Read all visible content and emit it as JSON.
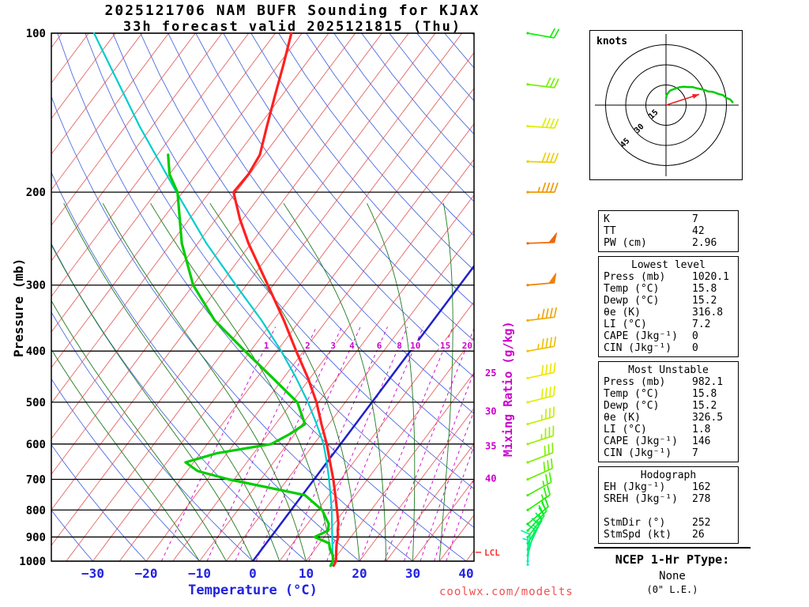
{
  "title": {
    "line1": "2025121706 NAM BUFR Sounding for KJAX",
    "line2": "33h forecast valid 2025121815 (Thu)"
  },
  "axes": {
    "pressure_label": "Pressure (mb)",
    "temp_label": "Temperature (°C)",
    "mixing_label": "Mixing Ratio (g/kg)",
    "pressure_ticks": [
      100,
      200,
      300,
      400,
      500,
      600,
      700,
      800,
      900,
      1000
    ],
    "temp_ticks": [
      -30,
      -20,
      -10,
      0,
      10,
      20,
      30,
      40
    ],
    "lcl_label": "LCL"
  },
  "watermark": "coolwx.com/modelts",
  "hodograph_panel": {
    "units_label": "knots",
    "rings_kt": [
      15,
      30,
      45
    ]
  },
  "stats": {
    "boxes": [
      {
        "title": null,
        "rows": [
          [
            "K",
            "7"
          ],
          [
            "TT",
            "42"
          ],
          [
            "PW (cm)",
            "2.96"
          ]
        ]
      },
      {
        "title": "Lowest level",
        "rows": [
          [
            "Press (mb)",
            "1020.1"
          ],
          [
            "Temp (°C)",
            "15.8"
          ],
          [
            "Dewp (°C)",
            "15.2"
          ],
          [
            "θe (K)",
            "316.8"
          ],
          [
            "LI (°C)",
            "7.2"
          ],
          [
            "CAPE (Jkg⁻¹)",
            "0"
          ],
          [
            "CIN (Jkg⁻¹)",
            "0"
          ]
        ]
      },
      {
        "title": "Most Unstable",
        "rows": [
          [
            "Press (mb)",
            "982.1"
          ],
          [
            "Temp (°C)",
            "15.8"
          ],
          [
            "Dewp (°C)",
            "15.2"
          ],
          [
            "θe (K)",
            "326.5"
          ],
          [
            "LI (°C)",
            "1.8"
          ],
          [
            "CAPE (Jkg⁻¹)",
            "146"
          ],
          [
            "CIN (Jkg⁻¹)",
            "7"
          ]
        ]
      },
      {
        "title": "Hodograph",
        "rows": [
          [
            "EH (Jkg⁻¹)",
            "162"
          ],
          [
            "SREH (Jkg⁻¹)",
            "278"
          ],
          [
            "",
            ""
          ],
          [
            "StmDir (°)",
            "252"
          ],
          [
            "StmSpd (kt)",
            "26"
          ]
        ]
      }
    ]
  },
  "ptype": {
    "title": "NCEP 1-Hr PType:",
    "value": "None",
    "note": "(0\" L.E.)"
  },
  "colors": {
    "isotherm": "#e04040",
    "zero_isotherm": "#2020cc",
    "dry_adiabat": "#3b5bdb",
    "moist_adiabat": "#1f7a1f",
    "mixing_ratio": "#cc00cc",
    "pressure_line": "#000000",
    "temperature_profile": "#ff2020",
    "dewpoint_profile": "#00cc00",
    "parcel_trace": "#00cccc",
    "lcl": "#ff3333",
    "storm_motion": "#ee2222",
    "hodo_trace": "#00cc00"
  },
  "chart_data": {
    "type": "skewt-log-p-sounding",
    "title": "2025121706 NAM BUFR Sounding for KJAX — 33h forecast valid 2025121815 (Thu)",
    "xlabel": "Temperature (°C)",
    "ylabel": "Pressure (mb)",
    "pressure_range_mb": [
      100,
      1020
    ],
    "temp_axis_range_c": [
      -40,
      45
    ],
    "temperature_profile_p_c": [
      [
        1020,
        15.8
      ],
      [
        1000,
        15.6
      ],
      [
        975,
        14.8
      ],
      [
        950,
        14.0
      ],
      [
        925,
        13.2
      ],
      [
        900,
        12.6
      ],
      [
        875,
        11.6
      ],
      [
        850,
        10.8
      ],
      [
        800,
        8.6
      ],
      [
        750,
        6.2
      ],
      [
        700,
        3.6
      ],
      [
        650,
        0.6
      ],
      [
        600,
        -2.6
      ],
      [
        550,
        -6.4
      ],
      [
        500,
        -10.4
      ],
      [
        450,
        -15.4
      ],
      [
        400,
        -21.4
      ],
      [
        350,
        -28.0
      ],
      [
        300,
        -36.0
      ],
      [
        250,
        -45.5
      ],
      [
        225,
        -50.5
      ],
      [
        200,
        -55.5
      ],
      [
        185,
        -55.2
      ],
      [
        170,
        -55.8
      ],
      [
        150,
        -58.5
      ],
      [
        130,
        -61.5
      ],
      [
        115,
        -64.0
      ],
      [
        100,
        -67.0
      ]
    ],
    "dewpoint_profile_p_c": [
      [
        1020,
        15.2
      ],
      [
        1000,
        15.0
      ],
      [
        975,
        14.2
      ],
      [
        950,
        12.8
      ],
      [
        925,
        11.8
      ],
      [
        900,
        8.2
      ],
      [
        875,
        9.8
      ],
      [
        850,
        9.0
      ],
      [
        800,
        5.8
      ],
      [
        750,
        0.5
      ],
      [
        700,
        -16.0
      ],
      [
        675,
        -23.0
      ],
      [
        650,
        -26.5
      ],
      [
        625,
        -22.0
      ],
      [
        600,
        -13.0
      ],
      [
        575,
        -11.0
      ],
      [
        550,
        -9.5
      ],
      [
        500,
        -14.0
      ],
      [
        450,
        -22.0
      ],
      [
        400,
        -31.0
      ],
      [
        350,
        -41.0
      ],
      [
        300,
        -50.0
      ],
      [
        250,
        -58.0
      ],
      [
        200,
        -66.0
      ],
      [
        185,
        -70.0
      ],
      [
        170,
        -73.0
      ]
    ],
    "parcel_wetbulb_trace_p_c": [
      [
        1020,
        15.4
      ],
      [
        1000,
        15.0
      ],
      [
        950,
        13.3
      ],
      [
        900,
        11.5
      ],
      [
        850,
        9.6
      ],
      [
        800,
        7.6
      ],
      [
        750,
        5.3
      ],
      [
        700,
        2.8
      ],
      [
        650,
        0.0
      ],
      [
        600,
        -3.2
      ],
      [
        550,
        -7.3
      ],
      [
        500,
        -12.0
      ],
      [
        450,
        -17.6
      ],
      [
        400,
        -24.2
      ],
      [
        350,
        -32.2
      ],
      [
        300,
        -42.0
      ],
      [
        250,
        -53.4
      ],
      [
        200,
        -66.2
      ],
      [
        150,
        -82.4
      ],
      [
        100,
        -104.0
      ]
    ],
    "winds_p_dir_spd_kt": [
      [
        1015,
        180,
        5
      ],
      [
        1000,
        185,
        8
      ],
      [
        975,
        195,
        11
      ],
      [
        950,
        205,
        13
      ],
      [
        925,
        212,
        15
      ],
      [
        900,
        218,
        17
      ],
      [
        875,
        224,
        19
      ],
      [
        850,
        230,
        21
      ],
      [
        800,
        236,
        24
      ],
      [
        750,
        241,
        26
      ],
      [
        700,
        246,
        29
      ],
      [
        650,
        249,
        31
      ],
      [
        600,
        252,
        33
      ],
      [
        550,
        254,
        36
      ],
      [
        500,
        256,
        38
      ],
      [
        450,
        258,
        40
      ],
      [
        400,
        260,
        43
      ],
      [
        350,
        263,
        45
      ],
      [
        300,
        265,
        48
      ],
      [
        250,
        268,
        50
      ],
      [
        200,
        270,
        46
      ],
      [
        175,
        272,
        42
      ],
      [
        150,
        274,
        38
      ],
      [
        125,
        277,
        30
      ],
      [
        100,
        280,
        22
      ]
    ],
    "mixing_ratio_lines_gkg": [
      1,
      2,
      3,
      4,
      6,
      8,
      10,
      15,
      20,
      25,
      30,
      35,
      40
    ],
    "lcl_pressure_mb": 962,
    "hodograph": {
      "rings_kt": [
        15,
        30,
        45
      ],
      "storm_dir_deg": 252,
      "storm_spd_kt": 26,
      "trace_max_pressure_mb": 250
    }
  }
}
